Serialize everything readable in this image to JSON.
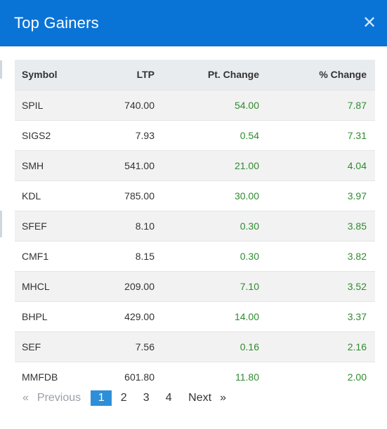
{
  "modal": {
    "title": "Top Gainers",
    "close_symbol": "✕"
  },
  "table": {
    "headers": {
      "symbol": "Symbol",
      "ltp": "LTP",
      "pt_change": "Pt. Change",
      "pct_change": "% Change"
    },
    "rows": [
      {
        "symbol": "SPIL",
        "ltp": "740.00",
        "pt_change": "54.00",
        "pct_change": "7.87"
      },
      {
        "symbol": "SIGS2",
        "ltp": "7.93",
        "pt_change": "0.54",
        "pct_change": "7.31"
      },
      {
        "symbol": "SMH",
        "ltp": "541.00",
        "pt_change": "21.00",
        "pct_change": "4.04"
      },
      {
        "symbol": "KDL",
        "ltp": "785.00",
        "pt_change": "30.00",
        "pct_change": "3.97"
      },
      {
        "symbol": "SFEF",
        "ltp": "8.10",
        "pt_change": "0.30",
        "pct_change": "3.85"
      },
      {
        "symbol": "CMF1",
        "ltp": "8.15",
        "pt_change": "0.30",
        "pct_change": "3.82"
      },
      {
        "symbol": "MHCL",
        "ltp": "209.00",
        "pt_change": "7.10",
        "pct_change": "3.52"
      },
      {
        "symbol": "BHPL",
        "ltp": "429.00",
        "pt_change": "14.00",
        "pct_change": "3.37"
      },
      {
        "symbol": "SEF",
        "ltp": "7.56",
        "pt_change": "0.16",
        "pct_change": "2.16"
      },
      {
        "symbol": "MMFDB",
        "ltp": "601.80",
        "pt_change": "11.80",
        "pct_change": "2.00"
      }
    ]
  },
  "pagination": {
    "prev_arrow": "«",
    "prev_label": "Previous",
    "pages": [
      "1",
      "2",
      "3",
      "4"
    ],
    "active_page": "1",
    "next_label": "Next",
    "next_arrow": "»"
  },
  "colors": {
    "header_bg": "#0a74d6",
    "positive": "#2e8b2e",
    "active_page": "#2e8fd9"
  }
}
